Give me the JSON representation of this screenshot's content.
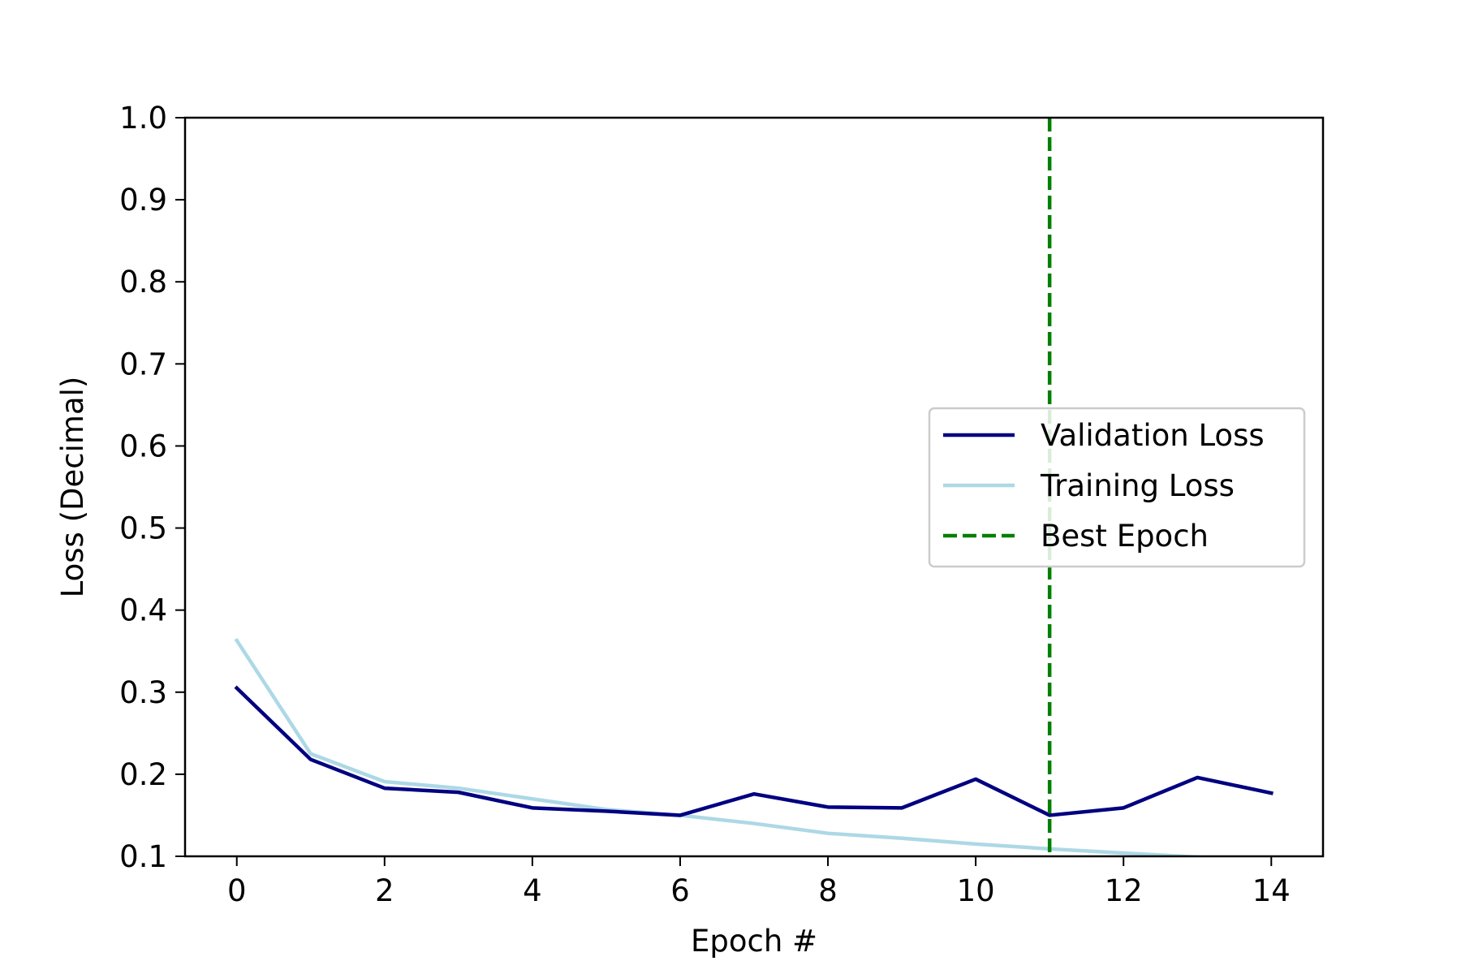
{
  "chart_data": {
    "type": "line",
    "title": "",
    "xlabel": "Epoch #",
    "ylabel": "Loss (Decimal)",
    "xlim": [
      -0.7,
      14.7
    ],
    "ylim": [
      0.1,
      1.0
    ],
    "x_ticks": [
      0,
      2,
      4,
      6,
      8,
      10,
      12,
      14
    ],
    "y_ticks": [
      0.1,
      0.2,
      0.3,
      0.4,
      0.5,
      0.6,
      0.7,
      0.8,
      0.9,
      1.0
    ],
    "x_tick_labels": [
      "0",
      "2",
      "4",
      "6",
      "8",
      "10",
      "12",
      "14"
    ],
    "y_tick_labels": [
      "0.1",
      "0.2",
      "0.3",
      "0.4",
      "0.5",
      "0.6",
      "0.7",
      "0.8",
      "0.9",
      "1.0"
    ],
    "x": [
      0,
      1,
      2,
      3,
      4,
      5,
      6,
      7,
      8,
      9,
      10,
      11,
      12,
      13,
      14
    ],
    "series": [
      {
        "name": "Validation Loss",
        "color": "#000080",
        "values": [
          0.305,
          0.218,
          0.183,
          0.178,
          0.159,
          0.155,
          0.15,
          0.176,
          0.16,
          0.159,
          0.194,
          0.15,
          0.159,
          0.196,
          0.177
        ]
      },
      {
        "name": "Training Loss",
        "color": "#add8e6",
        "values": [
          0.363,
          0.225,
          0.191,
          0.183,
          0.17,
          0.157,
          0.15,
          0.14,
          0.128,
          0.122,
          0.115,
          0.109,
          0.104,
          0.099,
          0.096
        ]
      }
    ],
    "vline": {
      "name": "Best Epoch",
      "x": 11,
      "color": "#008000",
      "style": "dashed"
    },
    "grid": false,
    "legend": {
      "position": "center-right",
      "entries": [
        "Validation Loss",
        "Training Loss",
        "Best Epoch"
      ]
    }
  }
}
